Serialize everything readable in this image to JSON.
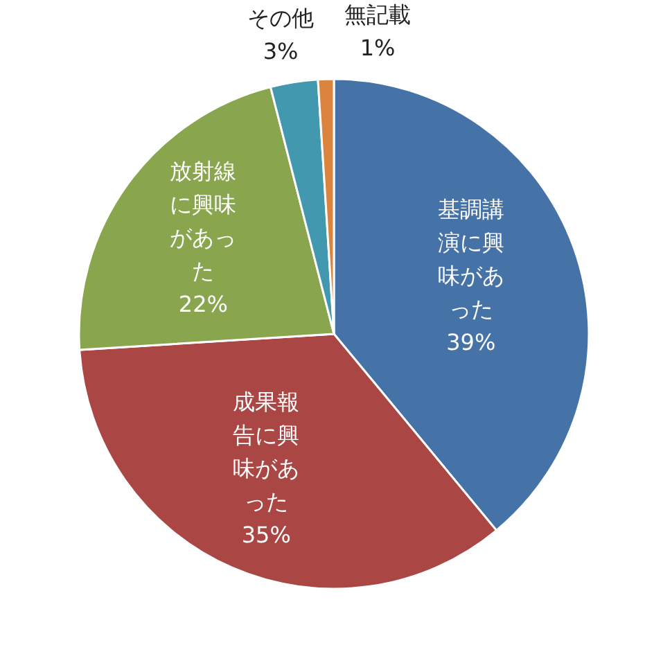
{
  "chart_data": {
    "type": "pie",
    "categories": [
      "基調講演に興味があった",
      "成果報告に興味があった",
      "放射線に興味があった",
      "その他",
      "無記載"
    ],
    "values": [
      39,
      35,
      22,
      3,
      1
    ],
    "value_labels": [
      "39%",
      "35%",
      "22%",
      "3%",
      "1%"
    ],
    "colors": [
      "#4572a7",
      "#aa4643",
      "#89a54e",
      "#4198af",
      "#db843d"
    ],
    "legend": false
  }
}
